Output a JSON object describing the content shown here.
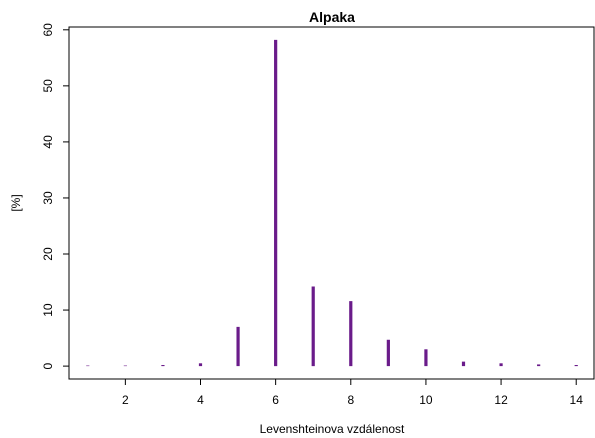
{
  "chart_data": {
    "type": "bar",
    "title": "Alpaka",
    "xlabel": "Levenshteinova vzdálenost",
    "ylabel": "[%]",
    "x": [
      1,
      2,
      3,
      4,
      5,
      6,
      7,
      8,
      9,
      10,
      11,
      12,
      13,
      14
    ],
    "values": [
      0.1,
      0.1,
      0.2,
      0.5,
      7.0,
      58.2,
      14.2,
      11.6,
      4.7,
      3.0,
      0.8,
      0.5,
      0.3,
      0.2
    ],
    "xticks": [
      2,
      4,
      6,
      8,
      10,
      12,
      14
    ],
    "yticks": [
      0,
      10,
      20,
      30,
      40,
      50,
      60
    ],
    "xlim": [
      0.5,
      14.5
    ],
    "ylim": [
      -2.3,
      60.5
    ],
    "grid": false,
    "legend": "none",
    "bar_color": "#6a1b8a"
  }
}
